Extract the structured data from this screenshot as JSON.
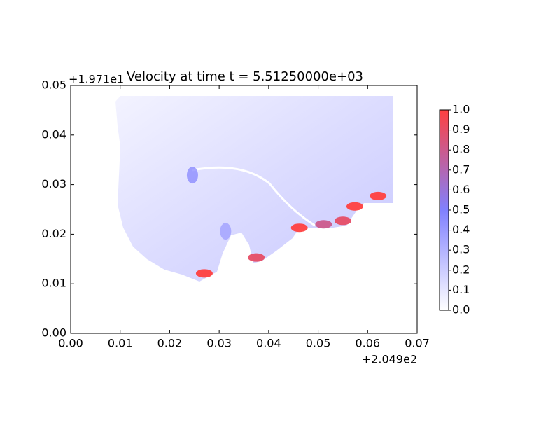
{
  "chart_data": {
    "type": "field",
    "title": "Velocity at time t = 5.51250000e+03",
    "x_offset": "+2.049e2",
    "y_offset": "+1.971e1",
    "xlim": [
      0,
      0.07
    ],
    "xticks": [
      {
        "value": 0,
        "label": "0.00"
      },
      {
        "value": 0.01,
        "label": "0.01"
      },
      {
        "value": 0.02,
        "label": "0.02"
      },
      {
        "value": 0.03,
        "label": "0.03"
      },
      {
        "value": 0.04,
        "label": "0.04"
      },
      {
        "value": 0.05,
        "label": "0.05"
      },
      {
        "value": 0.06,
        "label": "0.06"
      },
      {
        "value": 0.07,
        "label": "0.07"
      }
    ],
    "ylim": [
      0,
      0.05
    ],
    "yticks": [
      {
        "value": 0,
        "label": "0.00"
      },
      {
        "value": 0.01,
        "label": "0.01"
      },
      {
        "value": 0.02,
        "label": "0.02"
      },
      {
        "value": 0.03,
        "label": "0.03"
      },
      {
        "value": 0.04,
        "label": "0.04"
      },
      {
        "value": 0.05,
        "label": "0.05"
      }
    ],
    "colormap": [
      "#ffffff",
      "#8080ff",
      "#ff4040"
    ],
    "clim": [
      0,
      1
    ],
    "cticks": [
      {
        "value": 0,
        "label": "0.0"
      },
      {
        "value": 0.1,
        "label": "0.1"
      },
      {
        "value": 0.2,
        "label": "0.2"
      },
      {
        "value": 0.3,
        "label": "0.3"
      },
      {
        "value": 0.4,
        "label": "0.4"
      },
      {
        "value": 0.5,
        "label": "0.5"
      },
      {
        "value": 0.6,
        "label": "0.6"
      },
      {
        "value": 0.7,
        "label": "0.7"
      },
      {
        "value": 0.8,
        "label": "0.8"
      },
      {
        "value": 0.9,
        "label": "0.9"
      },
      {
        "value": 1,
        "label": "1.0"
      }
    ],
    "hotspots": {
      "x": [
        0.027,
        0.0375,
        0.0462,
        0.0511,
        0.055,
        0.0574,
        0.0621,
        0.0246,
        0.0313
      ],
      "y": [
        0.0121,
        0.0153,
        0.0213,
        0.022,
        0.0227,
        0.0256,
        0.0277,
        0.0319,
        0.0206
      ],
      "values": [
        1,
        0.9,
        1,
        0.8,
        0.9,
        1,
        1,
        0.5,
        0.4
      ]
    }
  }
}
